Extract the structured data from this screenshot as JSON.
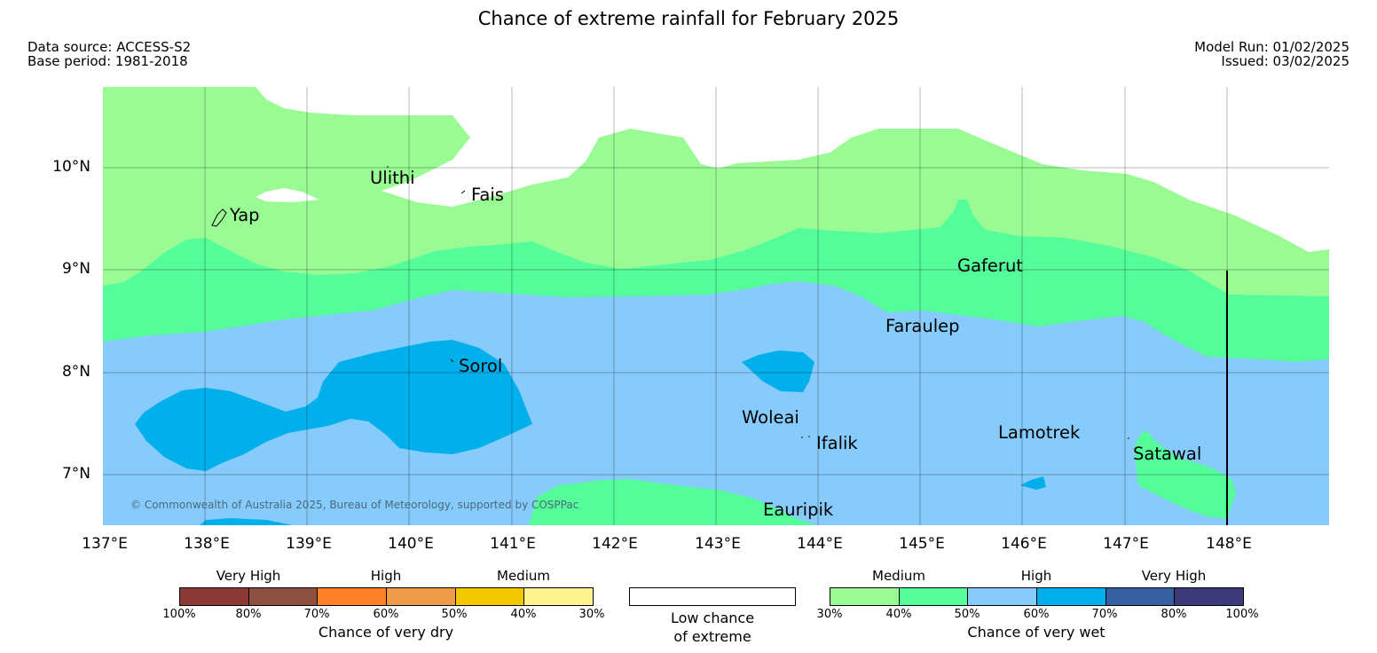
{
  "title": "Chance of extreme rainfall for February 2025",
  "data_source": "Data source: ACCESS-S2",
  "base_period": "Base period: 1981-2018",
  "model_run": "Model Run: 01/02/2025",
  "issued": "Issued: 03/02/2025",
  "map": {
    "lat_labels": [
      "10°N",
      "9°N",
      "8°N",
      "7°N"
    ],
    "lon_labels": [
      "137°E",
      "138°E",
      "139°E",
      "140°E",
      "141°E",
      "142°E",
      "143°E",
      "144°E",
      "145°E",
      "146°E",
      "147°E",
      "148°E"
    ],
    "places": {
      "yap": "Yap",
      "ulithi": "Ulithi",
      "fais": "Fais",
      "gaferut": "Gaferut",
      "faraulep": "Faraulep",
      "sorol": "Sorol",
      "woleai": "Woleai",
      "ifalik": "Ifalik",
      "lamotrek": "Lamotrek",
      "satawal": "Satawal",
      "eauripik": "Eauripik"
    },
    "copyright": "© Commonwealth of Australia 2025, Bureau of Meteorology, supported by COSPPac",
    "colors": {
      "wet_medium_30_40": "#9afb94",
      "wet_medium_40_50": "#54fc9a",
      "wet_high_50_60": "#86cbfb",
      "wet_high_60_70": "#01b0eb",
      "low_chance": "#ffffff"
    }
  },
  "legend": {
    "dry": {
      "categories": [
        "Very High",
        "High",
        "Medium"
      ],
      "ticks": [
        "100%",
        "80%",
        "70%",
        "60%",
        "50%",
        "40%",
        "30%"
      ],
      "colors": [
        "#8c3a36",
        "#8c5040",
        "#fd8227",
        "#ef9c4a",
        "#f2c900",
        "#fdf491"
      ],
      "title": "Chance of very dry"
    },
    "low": {
      "line1": "Low chance",
      "line2": "of extreme"
    },
    "wet": {
      "categories": [
        "Medium",
        "High",
        "Very High"
      ],
      "ticks": [
        "30%",
        "40%",
        "50%",
        "60%",
        "70%",
        "80%",
        "100%"
      ],
      "colors": [
        "#9afb94",
        "#54fc9a",
        "#86cbfb",
        "#01b0eb",
        "#355fa0",
        "#3c3a78"
      ],
      "title": "Chance of very wet"
    }
  }
}
